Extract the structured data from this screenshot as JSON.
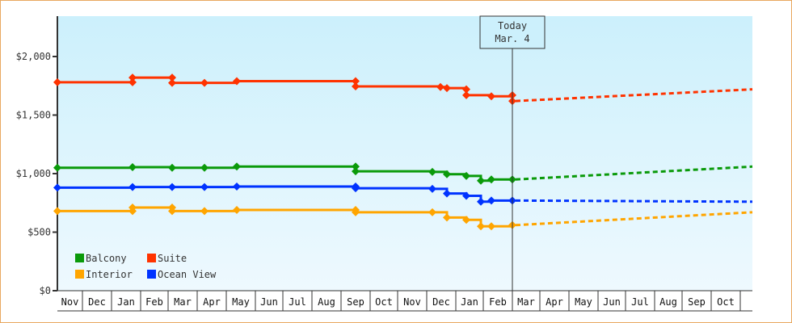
{
  "today_marker": {
    "line1": "Today",
    "line2": "Mar. 4"
  },
  "colors": {
    "Balcony": "#0a9a0a",
    "Suite": "#ff3300",
    "Interior": "#ffa500",
    "Ocean View": "#0033ff",
    "border": "#e8a860"
  },
  "chart_data": {
    "type": "line",
    "title": "",
    "xlabel": "",
    "ylabel": "",
    "ylim": [
      0,
      2300
    ],
    "y_ticks": [
      "$0",
      "$500",
      "$1,000",
      "$1,500",
      "$2,000"
    ],
    "x_ticks": [
      "Nov",
      "Dec",
      "Jan",
      "Feb",
      "Mar",
      "Apr",
      "May",
      "Jun",
      "Jul",
      "Aug",
      "Sep",
      "Oct",
      "Nov",
      "Dec",
      "Jan",
      "Feb",
      "Mar",
      "Apr",
      "May",
      "Jun",
      "Jul",
      "Aug",
      "Sep",
      "Oct"
    ],
    "legend": [
      "Balcony",
      "Suite",
      "Interior",
      "Ocean View"
    ],
    "legend_position": "lower-left",
    "annotation": "Today Mar. 4",
    "series": [
      {
        "name": "Suite",
        "history": [
          [
            "Nov",
            1780
          ],
          [
            "Jan",
            1780
          ],
          [
            "Jan",
            1820
          ],
          [
            "Mar",
            1820
          ],
          [
            "Mar",
            1775
          ],
          [
            "Apr",
            1775
          ],
          [
            "May",
            1790
          ],
          [
            "Sep",
            1790
          ],
          [
            "Sep",
            1745
          ],
          [
            "Dec",
            1740
          ],
          [
            "Dec",
            1730
          ],
          [
            "Jan",
            1720
          ],
          [
            "Jan",
            1670
          ],
          [
            "Feb",
            1660
          ],
          [
            "Mar",
            1670
          ],
          [
            "Mar",
            1620
          ]
        ],
        "forecast": [
          [
            "Mar",
            1620
          ],
          [
            "Oct",
            1720
          ]
        ]
      },
      {
        "name": "Balcony",
        "history": [
          [
            "Nov",
            1050
          ],
          [
            "Jan",
            1055
          ],
          [
            "Mar",
            1050
          ],
          [
            "Apr",
            1050
          ],
          [
            "May",
            1060
          ],
          [
            "Sep",
            1060
          ],
          [
            "Sep",
            1020
          ],
          [
            "Dec",
            1015
          ],
          [
            "Dec",
            995
          ],
          [
            "Jan",
            980
          ],
          [
            "Jan",
            940
          ],
          [
            "Feb",
            950
          ],
          [
            "Mar",
            950
          ]
        ],
        "forecast": [
          [
            "Mar",
            950
          ],
          [
            "Oct",
            1060
          ]
        ]
      },
      {
        "name": "Ocean View",
        "history": [
          [
            "Nov",
            880
          ],
          [
            "Jan",
            885
          ],
          [
            "Mar",
            885
          ],
          [
            "Apr",
            885
          ],
          [
            "May",
            890
          ],
          [
            "Sep",
            890
          ],
          [
            "Sep",
            875
          ],
          [
            "Dec",
            870
          ],
          [
            "Dec",
            830
          ],
          [
            "Jan",
            810
          ],
          [
            "Jan",
            760
          ],
          [
            "Feb",
            770
          ],
          [
            "Mar",
            770
          ]
        ],
        "forecast": [
          [
            "Mar",
            770
          ],
          [
            "Oct",
            760
          ]
        ]
      },
      {
        "name": "Interior",
        "history": [
          [
            "Nov",
            680
          ],
          [
            "Jan",
            680
          ],
          [
            "Jan",
            710
          ],
          [
            "Mar",
            710
          ],
          [
            "Mar",
            680
          ],
          [
            "Apr",
            680
          ],
          [
            "May",
            690
          ],
          [
            "Sep",
            690
          ],
          [
            "Sep",
            670
          ],
          [
            "Dec",
            670
          ],
          [
            "Dec",
            625
          ],
          [
            "Jan",
            605
          ],
          [
            "Jan",
            550
          ],
          [
            "Feb",
            550
          ],
          [
            "Mar",
            560
          ]
        ],
        "forecast": [
          [
            "Mar",
            560
          ],
          [
            "Oct",
            670
          ]
        ]
      }
    ]
  }
}
